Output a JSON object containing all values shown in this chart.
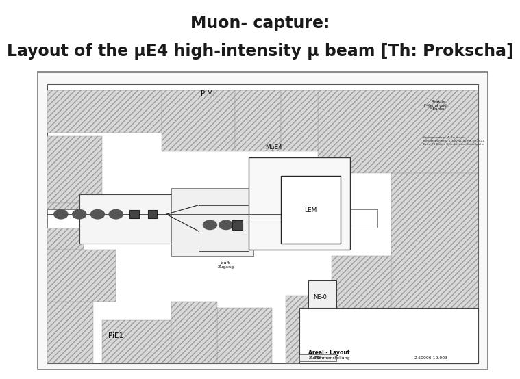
{
  "title_line1": "Muon- capture:",
  "title_line2": "Layout of the μE4 high-intensity μ beam [Th: Prokscha]",
  "bg_color": "#ffffff",
  "title_color": "#1a1a1a",
  "title_fontsize": 17,
  "subtitle_fontsize": 17,
  "drawing_bg": "#ffffff",
  "drawing_border_color": "#555555",
  "hatch_color": "#888888",
  "hatch_bg": "#e0e0e0",
  "inner_bg": "#f0f0f0",
  "line_color": "#222222",
  "label_color": "#111111"
}
